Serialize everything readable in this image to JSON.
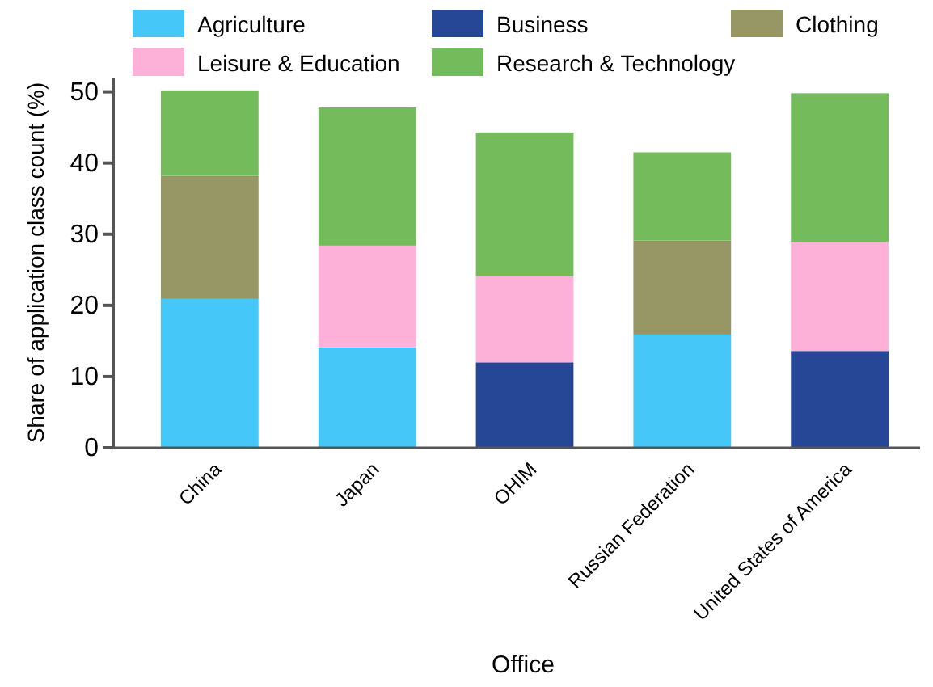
{
  "chart_data": {
    "type": "bar",
    "stacked": true,
    "xlabel": "Office",
    "ylabel": "Share of application class count (%)",
    "categories": [
      "China",
      "Japan",
      "OHIM",
      "Russian Federation",
      "United States of America"
    ],
    "series": [
      {
        "name": "Agriculture",
        "color": "#45c8f8",
        "values": [
          20.9,
          14.1,
          null,
          15.9,
          null
        ]
      },
      {
        "name": "Business",
        "color": "#264796",
        "values": [
          null,
          null,
          12.0,
          null,
          13.6
        ]
      },
      {
        "name": "Clothing",
        "color": "#979665",
        "values": [
          17.3,
          null,
          null,
          13.2,
          null
        ]
      },
      {
        "name": "Leisure & Education",
        "color": "#fdb1d8",
        "values": [
          null,
          14.3,
          12.1,
          null,
          15.3
        ]
      },
      {
        "name": "Research & Technology",
        "color": "#74bb5b",
        "values": [
          12.0,
          19.4,
          20.2,
          12.4,
          20.9
        ]
      }
    ],
    "ylim": [
      0,
      52
    ],
    "yticks": [
      0,
      10,
      20,
      30,
      40,
      50
    ],
    "grid": false,
    "legend": "top"
  }
}
